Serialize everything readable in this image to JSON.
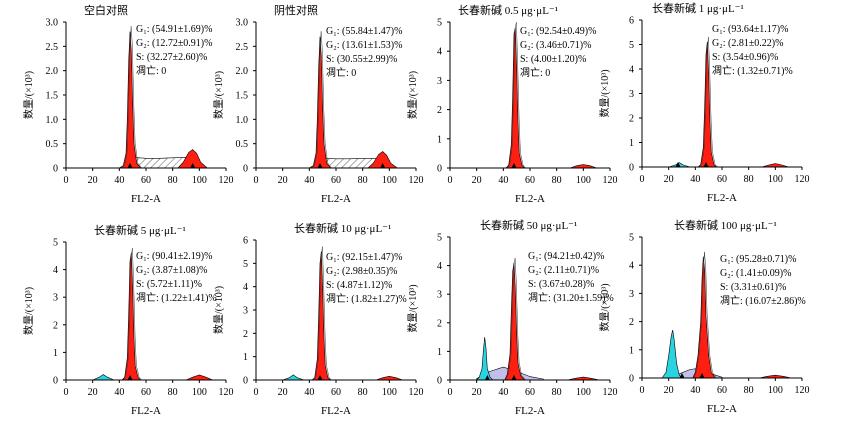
{
  "chart_data": [
    {
      "type": "area",
      "title": "空白对照",
      "xlabel": "FL2-A",
      "ylabel": "数量/(×10³)",
      "xlim": [
        0,
        120
      ],
      "ylim": [
        0,
        3
      ],
      "xticks": [
        0,
        20,
        40,
        60,
        80,
        100,
        120
      ],
      "yticks": [
        0,
        0.5,
        1,
        1.5,
        2,
        2.5,
        3
      ],
      "ytick_labels": [
        "0",
        "0.5",
        "1.0",
        "1.5",
        "2.0",
        "2.5",
        "3.0"
      ],
      "annotations": [
        "G₁: (54.91±1.69)%",
        "G₂: (12.72±0.91)%",
        "S: (32.27±2.60)%",
        "凋亡: 0"
      ],
      "series": [
        {
          "name": "G1",
          "x": [
            40,
            43,
            45,
            46,
            47,
            48,
            49,
            50,
            51,
            53,
            56
          ],
          "y": [
            0,
            0.05,
            0.3,
            1.0,
            2.2,
            2.8,
            2.4,
            1.3,
            0.5,
            0.1,
            0
          ]
        },
        {
          "name": "G2",
          "x": [
            84,
            88,
            92,
            95,
            98,
            101,
            106
          ],
          "y": [
            0,
            0.12,
            0.32,
            0.38,
            0.3,
            0.12,
            0
          ]
        },
        {
          "name": "S",
          "x": [
            50,
            60,
            70,
            80,
            90,
            100
          ],
          "y": [
            0.22,
            0.2,
            0.2,
            0.21,
            0.22,
            0.18
          ]
        }
      ],
      "markers": [
        48,
        95
      ]
    },
    {
      "type": "area",
      "title": "阴性对照",
      "xlabel": "FL2-A",
      "ylabel": "数量/(×10³)",
      "xlim": [
        0,
        120
      ],
      "ylim": [
        0,
        3
      ],
      "xticks": [
        0,
        20,
        40,
        60,
        80,
        100,
        120
      ],
      "yticks": [
        0,
        0.5,
        1,
        1.5,
        2,
        2.5,
        3
      ],
      "ytick_labels": [
        "0",
        "0.5",
        "1.0",
        "1.5",
        "2.0",
        "2.5",
        "3.0"
      ],
      "annotations": [
        "G₁: (55.84±1.47)%",
        "G₂: (13.61±1.53)%",
        "S: (30.55±2.99)%",
        "凋亡: 0"
      ],
      "series": [
        {
          "name": "G1",
          "x": [
            40,
            43,
            45,
            46,
            47,
            48,
            49,
            50,
            51,
            53,
            56
          ],
          "y": [
            0,
            0.05,
            0.3,
            1.0,
            2.1,
            2.7,
            2.3,
            1.2,
            0.5,
            0.1,
            0
          ]
        },
        {
          "name": "G2",
          "x": [
            84,
            88,
            92,
            95,
            98,
            101,
            106
          ],
          "y": [
            0,
            0.1,
            0.28,
            0.34,
            0.26,
            0.1,
            0
          ]
        },
        {
          "name": "S",
          "x": [
            50,
            60,
            70,
            80,
            90,
            100
          ],
          "y": [
            0.2,
            0.19,
            0.19,
            0.2,
            0.2,
            0.16
          ]
        }
      ],
      "markers": [
        48,
        95
      ]
    },
    {
      "type": "area",
      "title": "长春新碱 0.5 μg·μL⁻¹",
      "xlabel": "FL2-A",
      "ylabel": "数量/(×10³)",
      "xlim": [
        0,
        120
      ],
      "ylim": [
        0,
        5
      ],
      "xticks": [
        0,
        20,
        40,
        60,
        80,
        100,
        120
      ],
      "yticks": [
        0,
        1,
        2,
        3,
        4,
        5
      ],
      "ytick_labels": [
        "0",
        "1",
        "2",
        "3",
        "4",
        "5"
      ],
      "annotations": [
        "G₁: (92.54±0.49)%",
        "G₂: (3.46±0.71)%",
        "S: (4.00±1.20)%",
        "凋亡: 0"
      ],
      "series": [
        {
          "name": "G1",
          "x": [
            42,
            44,
            46,
            47,
            48,
            49,
            50,
            51,
            52,
            54,
            56
          ],
          "y": [
            0,
            0.1,
            0.8,
            2.5,
            4.6,
            4.8,
            3.4,
            1.6,
            0.5,
            0.1,
            0
          ]
        },
        {
          "name": "G2",
          "x": [
            90,
            95,
            100,
            105,
            110
          ],
          "y": [
            0,
            0.08,
            0.12,
            0.08,
            0
          ]
        }
      ],
      "markers": [
        48
      ]
    },
    {
      "type": "area",
      "title": "长春新碱 1 μg·μL⁻¹",
      "xlabel": "FL2-A",
      "ylabel": "数量/(×10³)",
      "xlim": [
        0,
        120
      ],
      "ylim": [
        0,
        6
      ],
      "xticks": [
        0,
        20,
        40,
        60,
        80,
        100,
        120
      ],
      "yticks": [
        0,
        1,
        2,
        3,
        4,
        5,
        6
      ],
      "ytick_labels": [
        "0",
        "1",
        "2",
        "3",
        "4",
        "5",
        "6"
      ],
      "annotations": [
        "G₁: (93.64±1.17)%",
        "G₂: (2.81±0.22)%",
        "S: (3.54±0.96)%",
        "凋亡: (1.32±0.71)%"
      ],
      "series": [
        {
          "name": "凋亡",
          "x": [
            20,
            25,
            28,
            31,
            36
          ],
          "y": [
            0,
            0.08,
            0.18,
            0.08,
            0
          ]
        },
        {
          "name": "G1",
          "x": [
            42,
            44,
            46,
            47,
            48,
            49,
            50,
            51,
            52,
            54,
            56
          ],
          "y": [
            0,
            0.1,
            0.8,
            2.5,
            4.6,
            5.1,
            3.8,
            1.8,
            0.6,
            0.1,
            0
          ]
        },
        {
          "name": "G2",
          "x": [
            90,
            95,
            100,
            105,
            110
          ],
          "y": [
            0,
            0.08,
            0.14,
            0.08,
            0
          ]
        }
      ],
      "markers": [
        27,
        48
      ]
    },
    {
      "type": "area",
      "title": "长春新碱 5 μg·μL⁻¹",
      "xlabel": "FL2-A",
      "ylabel": "数量/(×10³)",
      "xlim": [
        0,
        120
      ],
      "ylim": [
        0,
        5
      ],
      "xticks": [
        0,
        20,
        40,
        60,
        80,
        100,
        120
      ],
      "yticks": [
        0,
        1,
        2,
        3,
        4,
        5
      ],
      "ytick_labels": [
        "0",
        "1",
        "2",
        "3",
        "4",
        "5"
      ],
      "annotations": [
        "G₁: (90.41±2.19)%",
        "G₂: (3.87±1.08)%",
        "S: (5.72±1.11)%",
        "凋亡: (1.22±1.41)%"
      ],
      "series": [
        {
          "name": "凋亡",
          "x": [
            20,
            25,
            28,
            31,
            36
          ],
          "y": [
            0,
            0.1,
            0.2,
            0.1,
            0
          ]
        },
        {
          "name": "G1",
          "x": [
            42,
            44,
            46,
            47,
            48,
            49,
            50,
            51,
            52,
            54,
            56
          ],
          "y": [
            0,
            0.1,
            0.8,
            2.4,
            4.3,
            4.6,
            3.3,
            1.5,
            0.5,
            0.1,
            0
          ]
        },
        {
          "name": "G2",
          "x": [
            90,
            95,
            100,
            105,
            110
          ],
          "y": [
            0,
            0.1,
            0.18,
            0.1,
            0
          ]
        }
      ],
      "markers": [
        48
      ]
    },
    {
      "type": "area",
      "title": "长春新碱 10 μg·μL⁻¹",
      "xlabel": "FL2-A",
      "ylabel": "数量/(×10³)",
      "xlim": [
        0,
        120
      ],
      "ylim": [
        0,
        6
      ],
      "xticks": [
        0,
        20,
        40,
        60,
        80,
        100,
        120
      ],
      "yticks": [
        0,
        1,
        2,
        3,
        4,
        5,
        6
      ],
      "ytick_labels": [
        "0",
        "1",
        "2",
        "3",
        "4",
        "5",
        "6"
      ],
      "annotations": [
        "G₁: (92.15±1.47)%",
        "G₂: (2.98±0.35)%",
        "S: (4.87±1.12)%",
        "凋亡: (1.82±1.27)%"
      ],
      "series": [
        {
          "name": "凋亡",
          "x": [
            20,
            25,
            28,
            31,
            36
          ],
          "y": [
            0,
            0.1,
            0.22,
            0.1,
            0
          ]
        },
        {
          "name": "G1",
          "x": [
            42,
            44,
            46,
            47,
            48,
            49,
            50,
            51,
            52,
            54,
            56
          ],
          "y": [
            0,
            0.1,
            0.9,
            2.8,
            5.0,
            5.5,
            3.9,
            1.8,
            0.6,
            0.1,
            0
          ]
        },
        {
          "name": "G2",
          "x": [
            90,
            95,
            100,
            105,
            110
          ],
          "y": [
            0,
            0.1,
            0.16,
            0.1,
            0
          ]
        }
      ],
      "markers": [
        48
      ]
    },
    {
      "type": "area",
      "title": "长春新碱 50 μg·μL⁻¹",
      "xlabel": "FL2-A",
      "ylabel": "数量/(×10³)",
      "xlim": [
        0,
        120
      ],
      "ylim": [
        0,
        5
      ],
      "xticks": [
        0,
        20,
        40,
        60,
        80,
        100,
        120
      ],
      "yticks": [
        0,
        1,
        2,
        3,
        4,
        5
      ],
      "ytick_labels": [
        "0",
        "1",
        "2",
        "3",
        "4",
        "5"
      ],
      "annotations": [
        "G₁: (94.21±0.42)%",
        "G₂: (2.11±0.71)%",
        "S: (3.67±0.28)%",
        "凋亡: (31.20±1.59)%"
      ],
      "series": [
        {
          "name": "凋亡",
          "x": [
            20,
            22,
            24,
            25,
            26,
            27,
            28,
            30,
            32
          ],
          "y": [
            0,
            0.1,
            0.4,
            1.0,
            1.5,
            1.1,
            0.4,
            0.1,
            0
          ]
        },
        {
          "name": "G1",
          "x": [
            41,
            43,
            45,
            46,
            47,
            48,
            49,
            50,
            51,
            53,
            56
          ],
          "y": [
            0,
            0.2,
            0.9,
            2.4,
            3.8,
            4.1,
            3.2,
            1.6,
            0.6,
            0.15,
            0
          ]
        },
        {
          "name": "G2",
          "x": [
            88,
            94,
            100,
            106,
            112
          ],
          "y": [
            0,
            0.06,
            0.1,
            0.06,
            0
          ]
        },
        {
          "name": "S",
          "x": [
            20,
            30,
            40,
            50,
            60,
            70
          ],
          "y": [
            0.05,
            0.3,
            0.45,
            0.3,
            0.12,
            0.03
          ]
        }
      ],
      "markers": [
        28,
        48
      ]
    },
    {
      "type": "area",
      "title": "长春新碱 100 μg·μL⁻¹",
      "xlabel": "FL2-A",
      "ylabel": "数量/(×10³)",
      "xlim": [
        0,
        120
      ],
      "ylim": [
        0,
        5
      ],
      "xticks": [
        0,
        20,
        40,
        60,
        80,
        100,
        120
      ],
      "yticks": [
        0,
        1,
        2,
        3,
        4,
        5
      ],
      "ytick_labels": [
        "0",
        "1",
        "2",
        "3",
        "4",
        "5"
      ],
      "annotations": [
        "G₁: (95.28±0.71)%",
        "G₂: (1.41±0.09)%",
        "S: (3.31±0.61)%",
        "凋亡: (16.07±2.86)%"
      ],
      "series": [
        {
          "name": "凋亡",
          "x": [
            15,
            18,
            20,
            22,
            23,
            24,
            26,
            28,
            30
          ],
          "y": [
            0,
            0.2,
            0.8,
            1.5,
            1.7,
            1.4,
            0.5,
            0.1,
            0
          ]
        },
        {
          "name": "G1",
          "x": [
            38,
            40,
            42,
            44,
            45,
            46,
            47,
            48,
            50,
            52,
            55
          ],
          "y": [
            0,
            0.2,
            0.8,
            2.0,
            3.5,
            4.3,
            3.8,
            2.2,
            0.8,
            0.2,
            0
          ]
        },
        {
          "name": "G2",
          "x": [
            88,
            94,
            100,
            106,
            112
          ],
          "y": [
            0,
            0.06,
            0.1,
            0.06,
            0
          ]
        },
        {
          "name": "S",
          "x": [
            20,
            28,
            36,
            44,
            52,
            60
          ],
          "y": [
            0.05,
            0.15,
            0.3,
            0.35,
            0.15,
            0.03
          ]
        }
      ],
      "markers": [
        30,
        45
      ]
    }
  ],
  "colors": {
    "G1": "#ff1e12",
    "G2": "#ff1e12",
    "S": "#b7b4e6",
    "凋亡": "#29d4e0",
    "outline": "#000000",
    "axis": "#000000"
  }
}
